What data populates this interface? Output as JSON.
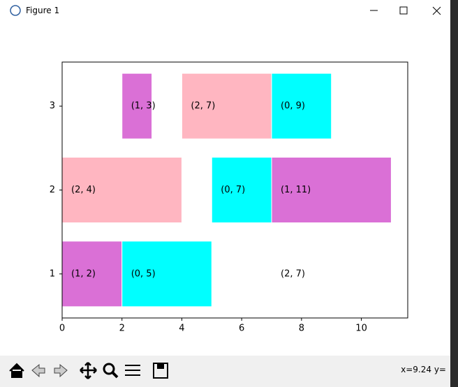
{
  "window": {
    "title": "Figure 1",
    "status": "x=9.24 y="
  },
  "chart_data": {
    "type": "broken_barh",
    "xlim": [
      0,
      11.55
    ],
    "ylim": [
      0.475,
      3.525
    ],
    "xticks": [
      0,
      2,
      4,
      6,
      8,
      10
    ],
    "yticks": [
      1,
      2,
      3
    ],
    "bars": [
      {
        "y": 1,
        "start": 0,
        "end": 2,
        "color": "#da70d6",
        "label": "(1, 2)"
      },
      {
        "y": 1,
        "start": 2,
        "end": 5,
        "color": "#00ffff",
        "label": "(0, 5)"
      },
      {
        "y": 1,
        "start": 7,
        "end": 7,
        "color": "#ffb6c1",
        "label": "(2, 7)"
      },
      {
        "y": 2,
        "start": 0,
        "end": 4,
        "color": "#ffb6c1",
        "label": "(2, 4)"
      },
      {
        "y": 2,
        "start": 5,
        "end": 7,
        "color": "#00ffff",
        "label": "(0, 7)"
      },
      {
        "y": 2,
        "start": 7,
        "end": 11,
        "color": "#da70d6",
        "label": "(1, 11)"
      },
      {
        "y": 3,
        "start": 2,
        "end": 3,
        "color": "#da70d6",
        "label": "(1, 3)"
      },
      {
        "y": 3,
        "start": 4,
        "end": 7,
        "color": "#ffb6c1",
        "label": "(2, 7)"
      },
      {
        "y": 3,
        "start": 7,
        "end": 9,
        "color": "#00ffff",
        "label": "(0, 9)"
      }
    ]
  }
}
